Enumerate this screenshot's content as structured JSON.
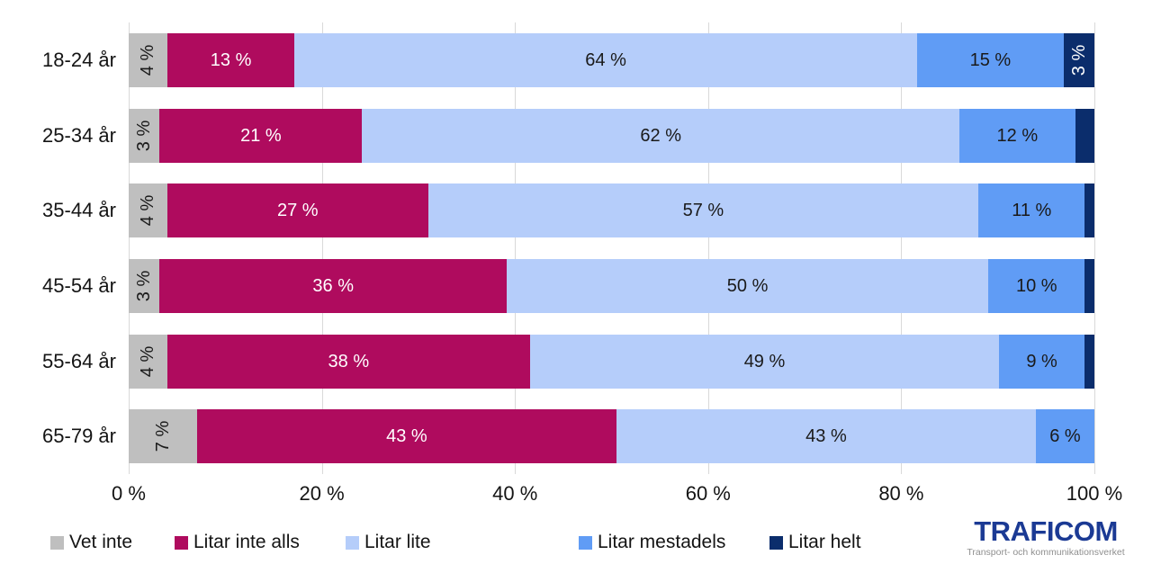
{
  "chart_data": {
    "type": "bar",
    "variant": "horizontal-stacked",
    "title": "",
    "categories": [
      "18-24 år",
      "25-34 år",
      "35-44 år",
      "45-54 år",
      "55-64 år",
      "65-79 år"
    ],
    "series": [
      {
        "name": "Vet inte",
        "color": "#bfbfbf",
        "text_color": "#1a1a1a",
        "rotate_labels": true,
        "values": [
          4,
          3,
          4,
          3,
          4,
          7
        ]
      },
      {
        "name": "Litar inte alls",
        "color": "#af0b5e",
        "text_color": "#ffffff",
        "rotate_labels": false,
        "values": [
          13,
          21,
          27,
          36,
          38,
          43
        ]
      },
      {
        "name": "Litar lite",
        "color": "#b5cdfa",
        "text_color": "#1a1a1a",
        "rotate_labels": false,
        "values": [
          64,
          62,
          57,
          50,
          49,
          43
        ]
      },
      {
        "name": "Litar mestadels",
        "color": "#609cf5",
        "text_color": "#1a1a1a",
        "rotate_labels": false,
        "values": [
          15,
          12,
          11,
          10,
          9,
          6
        ]
      },
      {
        "name": "Litar helt",
        "color": "#0b2d6c",
        "text_color": "#ffffff",
        "rotate_labels": true,
        "values": [
          3,
          2,
          1,
          1,
          1,
          0
        ]
      }
    ],
    "value_suffix": " %",
    "min_label_value": 3,
    "x_ticks": [
      "0 %",
      "20 %",
      "40 %",
      "60 %",
      "80 %",
      "100 %"
    ],
    "xlim": [
      0,
      100
    ],
    "grid": true,
    "legend_position": "bottom"
  },
  "logo": {
    "wordmark": "TRAFICOM",
    "subtitle": "Transport- och kommunikationsverket",
    "color": "#1b3a94",
    "subtitle_color": "#8f8f8f"
  }
}
